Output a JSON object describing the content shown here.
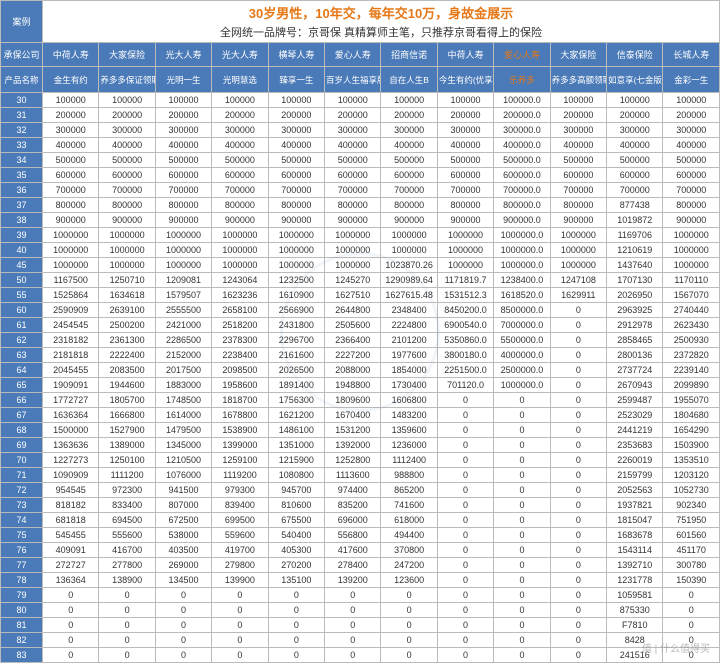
{
  "title_row_label": "案例",
  "title_main_color": "#e67817",
  "title_main": "30岁男性，10年交，每年交10万，身故金展示",
  "title_sub": "全网统一品牌号：京哥保  真精算师主笔，只推荐京哥看得上的保险",
  "header_company_label": "承保公司",
  "header_product_label": "产品名称",
  "companies": [
    "中荷人寿",
    "大家保险",
    "光大人寿",
    "光大人寿",
    "横琴人寿",
    "爱心人寿",
    "招商信诺",
    "中荷人寿",
    "爱心人寿",
    "大家保险",
    "信泰保险",
    "长城人寿"
  ],
  "highlight_company_index": 8,
  "products": [
    "金生有约",
    "养多多保证领取版",
    "光明一生",
    "光明慧选",
    "臻享一生",
    "百岁人生福享版",
    "自在人生B",
    "今生有约(优享版)",
    "乐养多",
    "养多多高额领取版",
    "如意享(七金版)",
    "金彩一生"
  ],
  "highlight_product_index": 8,
  "ages": [
    30,
    31,
    32,
    33,
    34,
    35,
    36,
    37,
    38,
    39,
    40,
    45,
    50,
    55,
    60,
    61,
    62,
    63,
    64,
    65,
    66,
    67,
    68,
    69,
    70,
    71,
    72,
    73,
    74,
    75,
    76,
    77,
    78,
    79,
    80,
    81,
    82,
    83
  ],
  "data": [
    [
      100000,
      100000,
      100000,
      100000,
      100000,
      100000,
      100000,
      100000,
      "100000.0",
      100000,
      100000,
      100000
    ],
    [
      200000,
      200000,
      200000,
      200000,
      200000,
      200000,
      200000,
      200000,
      "200000.0",
      200000,
      200000,
      200000
    ],
    [
      300000,
      300000,
      300000,
      300000,
      300000,
      300000,
      300000,
      300000,
      "300000.0",
      300000,
      300000,
      300000
    ],
    [
      400000,
      400000,
      400000,
      400000,
      400000,
      400000,
      400000,
      400000,
      "400000.0",
      400000,
      400000,
      400000
    ],
    [
      500000,
      500000,
      500000,
      500000,
      500000,
      500000,
      500000,
      500000,
      "500000.0",
      500000,
      500000,
      500000
    ],
    [
      600000,
      600000,
      600000,
      600000,
      600000,
      600000,
      600000,
      600000,
      "600000.0",
      600000,
      600000,
      600000
    ],
    [
      700000,
      700000,
      700000,
      700000,
      700000,
      700000,
      700000,
      700000,
      "700000.0",
      700000,
      700000,
      700000
    ],
    [
      800000,
      800000,
      800000,
      800000,
      800000,
      800000,
      800000,
      800000,
      "800000.0",
      800000,
      877438,
      800000
    ],
    [
      900000,
      900000,
      900000,
      900000,
      900000,
      900000,
      900000,
      900000,
      "900000.0",
      900000,
      1019872,
      900000
    ],
    [
      1000000,
      1000000,
      1000000,
      1000000,
      1000000,
      1000000,
      1000000,
      1000000,
      "1000000.0",
      1000000,
      1169706,
      1000000
    ],
    [
      1000000,
      1000000,
      1000000,
      1000000,
      1000000,
      1000000,
      1000000,
      1000000,
      "1000000.0",
      1000000,
      1210619,
      1000000
    ],
    [
      1000000,
      1000000,
      1000000,
      1000000,
      1000000,
      1000000,
      "1023870.26",
      1000000,
      "1000000.0",
      1000000,
      1437640,
      1000000
    ],
    [
      1167500,
      1250710,
      1209081,
      1243064,
      1232500,
      1245270,
      "1290989.64",
      "1171819.7",
      "1238400.0",
      1247108,
      1707130,
      1170110
    ],
    [
      1525864,
      1634618,
      1579507,
      1623236,
      1610900,
      1627510,
      "1627615.48",
      "1531512.3",
      "1618520.0",
      1629911,
      2026950,
      1567070
    ],
    [
      2590909,
      2639100,
      2555500,
      2658100,
      2566900,
      2644800,
      2348400,
      "8450200.0",
      "8500000.0",
      0,
      2963925,
      2740440
    ],
    [
      2454545,
      2500200,
      2421000,
      2518200,
      2431800,
      2505600,
      2224800,
      "6900540.0",
      "7000000.0",
      0,
      2912978,
      2623430
    ],
    [
      2318182,
      2361300,
      2286500,
      2378300,
      2296700,
      2366400,
      2101200,
      "5350860.0",
      "5500000.0",
      0,
      2858465,
      2500930
    ],
    [
      2181818,
      2222400,
      2152000,
      2238400,
      2161600,
      2227200,
      1977600,
      "3800180.0",
      "4000000.0",
      0,
      2800136,
      2372820
    ],
    [
      2045455,
      2083500,
      2017500,
      2098500,
      2026500,
      2088000,
      1854000,
      "2251500.0",
      "2500000.0",
      0,
      2737724,
      2239140
    ],
    [
      1909091,
      1944600,
      1883000,
      1958600,
      1891400,
      1948800,
      1730400,
      "701120.0",
      "1000000.0",
      0,
      2670943,
      2099890
    ],
    [
      1772727,
      1805700,
      1748500,
      1818700,
      1756300,
      1809600,
      1606800,
      0,
      0,
      0,
      2599487,
      1955070
    ],
    [
      1636364,
      1666800,
      1614000,
      1678800,
      1621200,
      1670400,
      1483200,
      0,
      0,
      0,
      2523029,
      1804680
    ],
    [
      1500000,
      1527900,
      1479500,
      1538900,
      1486100,
      1531200,
      1359600,
      0,
      0,
      0,
      2441219,
      1654290
    ],
    [
      1363636,
      1389000,
      1345000,
      1399000,
      1351000,
      1392000,
      1236000,
      0,
      0,
      0,
      2353683,
      1503900
    ],
    [
      1227273,
      1250100,
      1210500,
      1259100,
      1215900,
      1252800,
      1112400,
      0,
      0,
      0,
      2260019,
      1353510
    ],
    [
      1090909,
      1111200,
      1076000,
      1119200,
      1080800,
      1113600,
      988800,
      0,
      0,
      0,
      2159799,
      1203120
    ],
    [
      954545,
      972300,
      941500,
      979300,
      945700,
      974400,
      865200,
      0,
      0,
      0,
      2052563,
      1052730
    ],
    [
      818182,
      833400,
      807000,
      839400,
      810600,
      835200,
      741600,
      0,
      0,
      0,
      1937821,
      902340
    ],
    [
      681818,
      694500,
      672500,
      699500,
      675500,
      696000,
      618000,
      0,
      0,
      0,
      1815047,
      751950
    ],
    [
      545455,
      555600,
      538000,
      559600,
      540400,
      556800,
      494400,
      0,
      0,
      0,
      1683678,
      601560
    ],
    [
      409091,
      416700,
      403500,
      419700,
      405300,
      417600,
      370800,
      0,
      0,
      0,
      1543114,
      451170
    ],
    [
      272727,
      277800,
      269000,
      279800,
      270200,
      278400,
      247200,
      0,
      0,
      0,
      1392710,
      300780
    ],
    [
      136364,
      138900,
      134500,
      139900,
      135100,
      139200,
      123600,
      0,
      0,
      0,
      1231778,
      150390
    ],
    [
      0,
      0,
      0,
      0,
      0,
      0,
      0,
      0,
      0,
      0,
      1059581,
      0
    ],
    [
      0,
      0,
      0,
      0,
      0,
      0,
      0,
      0,
      0,
      0,
      875330,
      0
    ],
    [
      0,
      0,
      0,
      0,
      0,
      0,
      0,
      0,
      0,
      0,
      "F7810",
      0
    ],
    [
      0,
      0,
      0,
      0,
      0,
      0,
      0,
      0,
      0,
      0,
      "8428",
      0
    ],
    [
      0,
      0,
      0,
      0,
      0,
      0,
      0,
      0,
      0,
      0,
      241516,
      0
    ]
  ],
  "watermark": "值 | 什么值得买"
}
